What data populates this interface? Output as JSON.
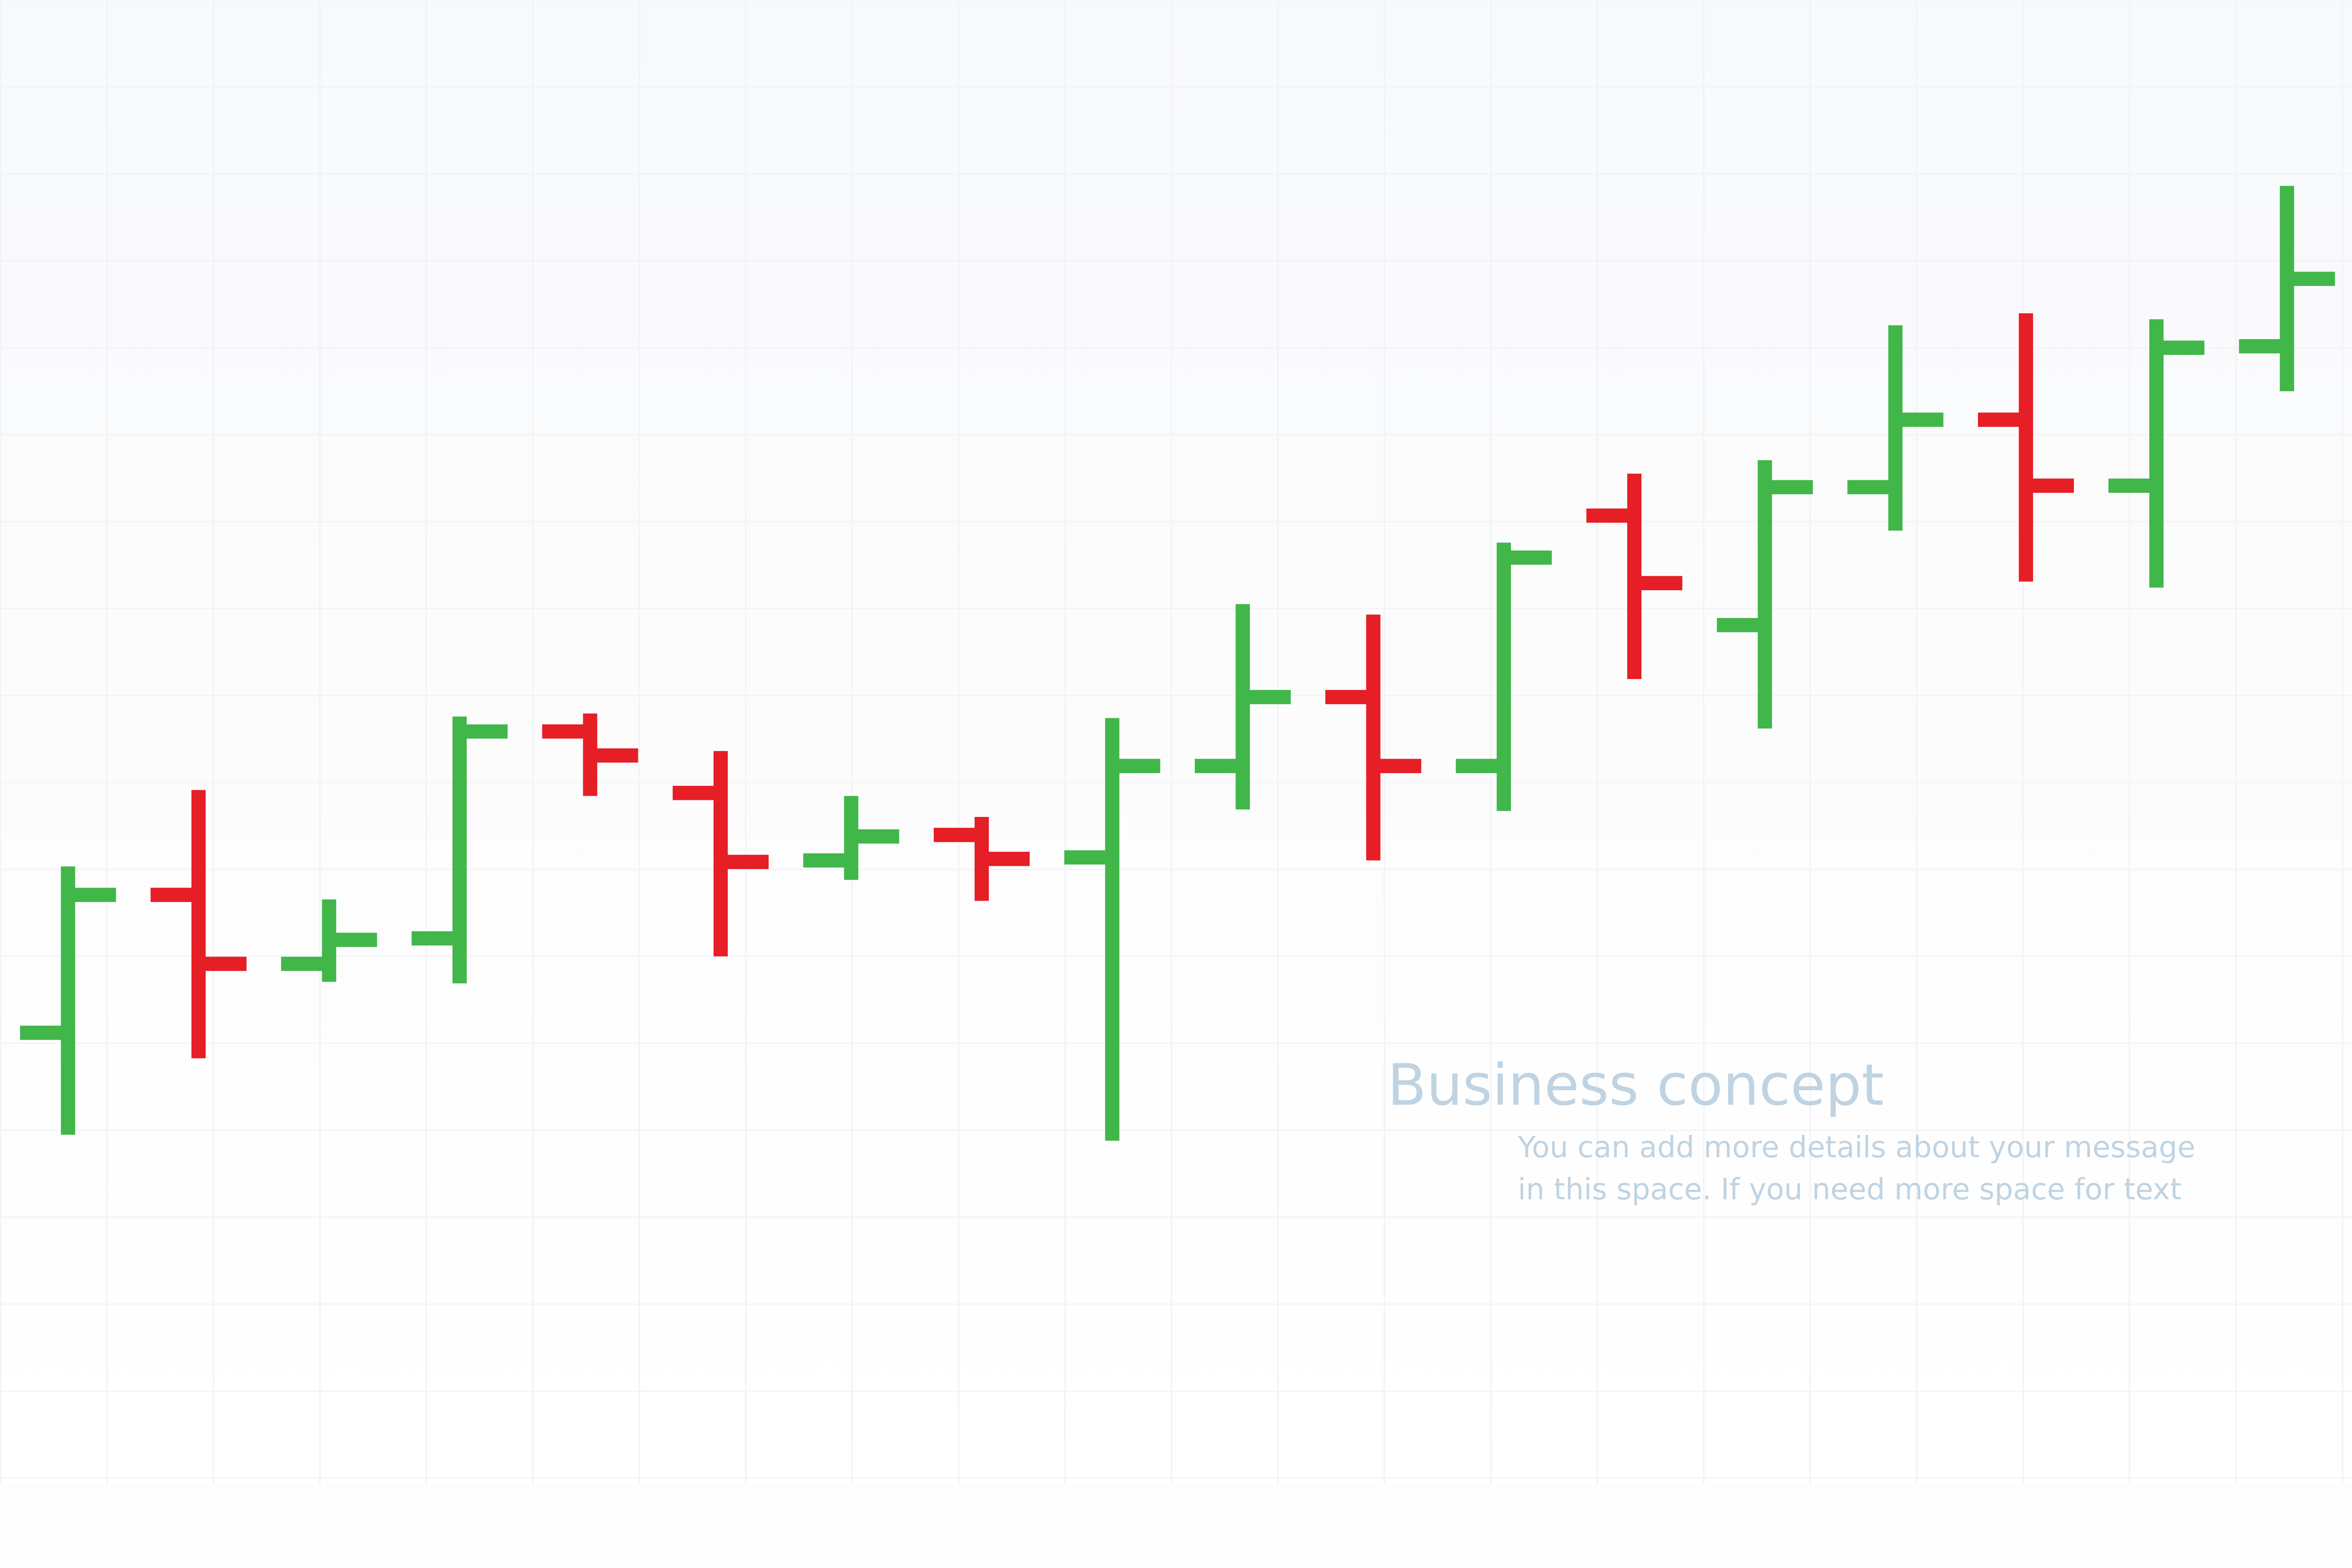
{
  "chart_data": {
    "type": "ohlc",
    "title": "",
    "xlabel": "",
    "ylabel": "",
    "axes_visible": false,
    "grid": "faint background grid",
    "legend": "none",
    "ylim": [
      20,
      90
    ],
    "colors": {
      "up": "#41b649",
      "down": "#e61e25",
      "text": "#bfd3e2"
    },
    "bars": [
      {
        "open": 31.1,
        "high": 42.2,
        "low": 24.3,
        "close": 40.3
      },
      {
        "open": 40.3,
        "high": 47.3,
        "low": 29.4,
        "close": 35.7
      },
      {
        "open": 35.7,
        "high": 40.0,
        "low": 34.5,
        "close": 37.3
      },
      {
        "open": 37.4,
        "high": 52.2,
        "low": 34.4,
        "close": 51.2
      },
      {
        "open": 51.2,
        "high": 52.4,
        "low": 46.9,
        "close": 49.6
      },
      {
        "open": 47.1,
        "high": 49.9,
        "low": 36.2,
        "close": 42.5
      },
      {
        "open": 42.6,
        "high": 46.9,
        "low": 41.3,
        "close": 44.2
      },
      {
        "open": 44.3,
        "high": 45.5,
        "low": 39.9,
        "close": 42.7
      },
      {
        "open": 42.8,
        "high": 52.1,
        "low": 23.9,
        "close": 48.9
      },
      {
        "open": 48.9,
        "high": 59.7,
        "low": 46.0,
        "close": 53.5
      },
      {
        "open": 53.5,
        "high": 59.0,
        "low": 42.6,
        "close": 48.9
      },
      {
        "open": 48.9,
        "high": 63.8,
        "low": 45.9,
        "close": 62.8
      },
      {
        "open": 65.6,
        "high": 68.4,
        "low": 54.7,
        "close": 61.1
      },
      {
        "open": 58.3,
        "high": 69.3,
        "low": 51.4,
        "close": 67.5
      },
      {
        "open": 67.5,
        "high": 78.3,
        "low": 64.6,
        "close": 72.0
      },
      {
        "open": 72.0,
        "high": 79.1,
        "low": 61.2,
        "close": 67.6
      },
      {
        "open": 67.6,
        "high": 78.7,
        "low": 60.8,
        "close": 76.8
      },
      {
        "open": 76.9,
        "high": 87.6,
        "low": 73.9,
        "close": 81.4
      }
    ]
  },
  "caption": {
    "title": "Business concept",
    "line1": "You can add more details about your message",
    "line2": "in this space. If you need more space for text"
  }
}
